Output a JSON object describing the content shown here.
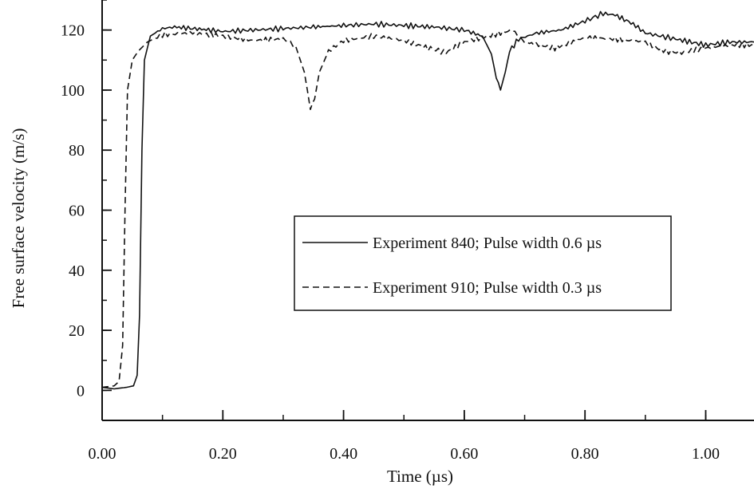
{
  "chart_data": {
    "type": "line",
    "title": "",
    "xlabel": "Time (µs)",
    "ylabel": "Free surface velocity (m/s)",
    "xlim": [
      0.0,
      1.08
    ],
    "ylim": [
      -10,
      130
    ],
    "x_ticks": [
      {
        "value": 0.0,
        "label": "0.00"
      },
      {
        "value": 0.2,
        "label": "0.20"
      },
      {
        "value": 0.4,
        "label": "0.40"
      },
      {
        "value": 0.6,
        "label": "0.60"
      },
      {
        "value": 0.8,
        "label": "0.80"
      },
      {
        "value": 1.0,
        "label": "1.00"
      }
    ],
    "x_minor_step": 0.1,
    "y_ticks": [
      {
        "value": 0,
        "label": "0"
      },
      {
        "value": 20,
        "label": "20"
      },
      {
        "value": 40,
        "label": "40"
      },
      {
        "value": 60,
        "label": "60"
      },
      {
        "value": 80,
        "label": "80"
      },
      {
        "value": 100,
        "label": "100"
      },
      {
        "value": 120,
        "label": "120"
      }
    ],
    "y_minor_step": 10,
    "grid": false,
    "legend_position": "center-right",
    "series": [
      {
        "name": "Experiment 840; Pulse width 0.6 µs",
        "line_style": "solid",
        "color": "#111111",
        "points": [
          [
            0.0,
            1
          ],
          [
            0.02,
            0.5
          ],
          [
            0.04,
            1
          ],
          [
            0.052,
            1.5
          ],
          [
            0.058,
            5
          ],
          [
            0.062,
            25
          ],
          [
            0.066,
            80
          ],
          [
            0.07,
            110
          ],
          [
            0.08,
            118
          ],
          [
            0.1,
            120.5
          ],
          [
            0.12,
            121
          ],
          [
            0.15,
            120.5
          ],
          [
            0.18,
            120
          ],
          [
            0.2,
            119.5
          ],
          [
            0.25,
            120
          ],
          [
            0.3,
            120.5
          ],
          [
            0.35,
            121
          ],
          [
            0.4,
            121.5
          ],
          [
            0.45,
            122
          ],
          [
            0.5,
            121.5
          ],
          [
            0.55,
            121
          ],
          [
            0.6,
            120
          ],
          [
            0.63,
            118
          ],
          [
            0.645,
            112
          ],
          [
            0.653,
            104
          ],
          [
            0.66,
            100
          ],
          [
            0.668,
            106
          ],
          [
            0.675,
            113
          ],
          [
            0.69,
            117
          ],
          [
            0.72,
            119
          ],
          [
            0.76,
            120
          ],
          [
            0.8,
            123
          ],
          [
            0.83,
            125.5
          ],
          [
            0.85,
            125
          ],
          [
            0.88,
            122
          ],
          [
            0.9,
            119
          ],
          [
            0.95,
            117
          ],
          [
            1.0,
            115
          ],
          [
            1.04,
            116
          ],
          [
            1.08,
            116
          ]
        ]
      },
      {
        "name": "Experiment 910; Pulse width 0.3 µs",
        "line_style": "dashed",
        "color": "#111111",
        "points": [
          [
            0.0,
            1
          ],
          [
            0.02,
            1.5
          ],
          [
            0.028,
            3
          ],
          [
            0.034,
            15
          ],
          [
            0.038,
            60
          ],
          [
            0.042,
            100
          ],
          [
            0.05,
            110
          ],
          [
            0.06,
            113
          ],
          [
            0.075,
            116
          ],
          [
            0.1,
            118.5
          ],
          [
            0.15,
            119
          ],
          [
            0.2,
            118
          ],
          [
            0.25,
            116.5
          ],
          [
            0.3,
            117
          ],
          [
            0.32,
            115
          ],
          [
            0.335,
            106
          ],
          [
            0.345,
            94
          ],
          [
            0.352,
            97
          ],
          [
            0.36,
            106
          ],
          [
            0.375,
            113
          ],
          [
            0.4,
            116.5
          ],
          [
            0.45,
            118
          ],
          [
            0.5,
            116.5
          ],
          [
            0.54,
            114
          ],
          [
            0.57,
            112.5
          ],
          [
            0.6,
            116
          ],
          [
            0.64,
            118
          ],
          [
            0.66,
            119
          ],
          [
            0.68,
            120
          ],
          [
            0.7,
            116
          ],
          [
            0.75,
            114
          ],
          [
            0.8,
            117.5
          ],
          [
            0.85,
            117
          ],
          [
            0.9,
            116
          ],
          [
            0.93,
            113
          ],
          [
            0.96,
            112.5
          ],
          [
            1.0,
            114
          ],
          [
            1.04,
            115
          ],
          [
            1.08,
            115
          ]
        ]
      }
    ]
  }
}
